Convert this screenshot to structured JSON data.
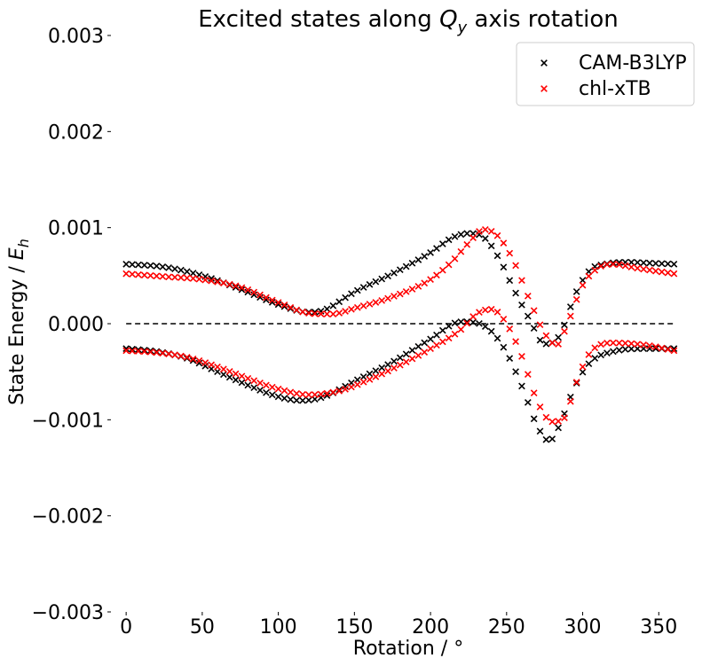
{
  "chart_data": {
    "type": "scatter",
    "title": "Excited states along Q_y axis rotation",
    "title_parts": {
      "before": "Excited states along ",
      "symbol": "Q",
      "subscript": "y",
      "after": " axis rotation"
    },
    "xlabel": "Rotation / °",
    "ylabel_parts": {
      "before": "State  Energy / ",
      "symbol": "E",
      "subscript": "h"
    },
    "xlim": [
      -10,
      365
    ],
    "ylim": [
      -0.003,
      0.003
    ],
    "x_ticks": [
      0,
      50,
      100,
      150,
      200,
      250,
      300,
      350
    ],
    "x_tick_labels": [
      "0",
      "50",
      "100",
      "150",
      "200",
      "250",
      "300",
      "350"
    ],
    "y_ticks": [
      0.003,
      0.002,
      0.001,
      0.0,
      -0.001,
      -0.002,
      -0.003
    ],
    "y_tick_labels": [
      "0.003",
      "0.002",
      "0.001",
      "0.000",
      "−0.001",
      "−0.002",
      "−0.003"
    ],
    "grid": false,
    "legend_position": "top-right",
    "reference_line": {
      "y": 0.0,
      "style": "dashed",
      "color": "#000000"
    },
    "x_step": 4,
    "series": [
      {
        "name": "CAM-B3LYP",
        "color": "#000000",
        "marker": "x",
        "state": "upper",
        "anchors": [
          [
            0,
            0.00062
          ],
          [
            25,
            0.00059
          ],
          [
            50,
            0.0005
          ],
          [
            75,
            0.00036
          ],
          [
            100,
            0.0002
          ],
          [
            120,
            0.00012
          ],
          [
            130,
            0.00014
          ],
          [
            150,
            0.00033
          ],
          [
            175,
            0.00052
          ],
          [
            200,
            0.00074
          ],
          [
            215,
            0.0009
          ],
          [
            225,
            0.00094
          ],
          [
            235,
            0.0009
          ],
          [
            245,
            0.00068
          ],
          [
            255,
            0.00035
          ],
          [
            265,
            5e-05
          ],
          [
            275,
            -0.00021
          ],
          [
            285,
            -0.00012
          ],
          [
            295,
            0.0003
          ],
          [
            305,
            0.00056
          ],
          [
            315,
            0.00062
          ],
          [
            330,
            0.00064
          ],
          [
            345,
            0.00063
          ],
          [
            360,
            0.00062
          ]
        ]
      },
      {
        "name": "CAM-B3LYP",
        "color": "#000000",
        "marker": "x",
        "state": "lower",
        "anchors": [
          [
            0,
            -0.00026
          ],
          [
            20,
            -0.00029
          ],
          [
            40,
            -0.00036
          ],
          [
            60,
            -0.0005
          ],
          [
            80,
            -0.00064
          ],
          [
            100,
            -0.00076
          ],
          [
            115,
            -0.0008
          ],
          [
            130,
            -0.00076
          ],
          [
            150,
            -0.0006
          ],
          [
            175,
            -0.0004
          ],
          [
            200,
            -0.00016
          ],
          [
            220,
            2e-05
          ],
          [
            230,
            1e-05
          ],
          [
            240,
            -8e-05
          ],
          [
            250,
            -0.0003
          ],
          [
            260,
            -0.00065
          ],
          [
            270,
            -0.00106
          ],
          [
            278,
            -0.00122
          ],
          [
            285,
            -0.00105
          ],
          [
            295,
            -0.00065
          ],
          [
            305,
            -0.0004
          ],
          [
            320,
            -0.00029
          ],
          [
            340,
            -0.00026
          ],
          [
            360,
            -0.00026
          ]
        ]
      },
      {
        "name": "chl-xTB",
        "color": "#ff0000",
        "marker": "x",
        "state": "upper",
        "anchors": [
          [
            0,
            0.00052
          ],
          [
            25,
            0.00049
          ],
          [
            50,
            0.00046
          ],
          [
            75,
            0.00038
          ],
          [
            100,
            0.00022
          ],
          [
            120,
            0.00011
          ],
          [
            135,
            0.0001
          ],
          [
            150,
            0.00016
          ],
          [
            175,
            0.00028
          ],
          [
            200,
            0.00046
          ],
          [
            215,
            0.00066
          ],
          [
            225,
            0.00084
          ],
          [
            235,
            0.00098
          ],
          [
            245,
            0.0009
          ],
          [
            255,
            0.00064
          ],
          [
            265,
            0.00025
          ],
          [
            275,
            -0.0001
          ],
          [
            283,
            -0.00022
          ],
          [
            290,
            0.0
          ],
          [
            300,
            0.0004
          ],
          [
            310,
            0.00058
          ],
          [
            320,
            0.00062
          ],
          [
            335,
            0.00058
          ],
          [
            360,
            0.00052
          ]
        ]
      },
      {
        "name": "chl-xTB",
        "color": "#ff0000",
        "marker": "x",
        "state": "lower",
        "anchors": [
          [
            0,
            -0.00028
          ],
          [
            20,
            -0.0003
          ],
          [
            40,
            -0.00035
          ],
          [
            60,
            -0.00045
          ],
          [
            80,
            -0.00057
          ],
          [
            100,
            -0.00068
          ],
          [
            120,
            -0.00074
          ],
          [
            140,
            -0.0007
          ],
          [
            160,
            -0.00058
          ],
          [
            180,
            -0.00043
          ],
          [
            200,
            -0.00026
          ],
          [
            220,
            -6e-05
          ],
          [
            230,
            0.0001
          ],
          [
            240,
            0.00015
          ],
          [
            250,
            0.0
          ],
          [
            260,
            -0.00034
          ],
          [
            270,
            -0.0008
          ],
          [
            280,
            -0.00102
          ],
          [
            288,
            -0.00098
          ],
          [
            295,
            -0.00065
          ],
          [
            305,
            -0.0003
          ],
          [
            320,
            -0.0002
          ],
          [
            340,
            -0.00022
          ],
          [
            360,
            -0.00028
          ]
        ]
      }
    ]
  }
}
